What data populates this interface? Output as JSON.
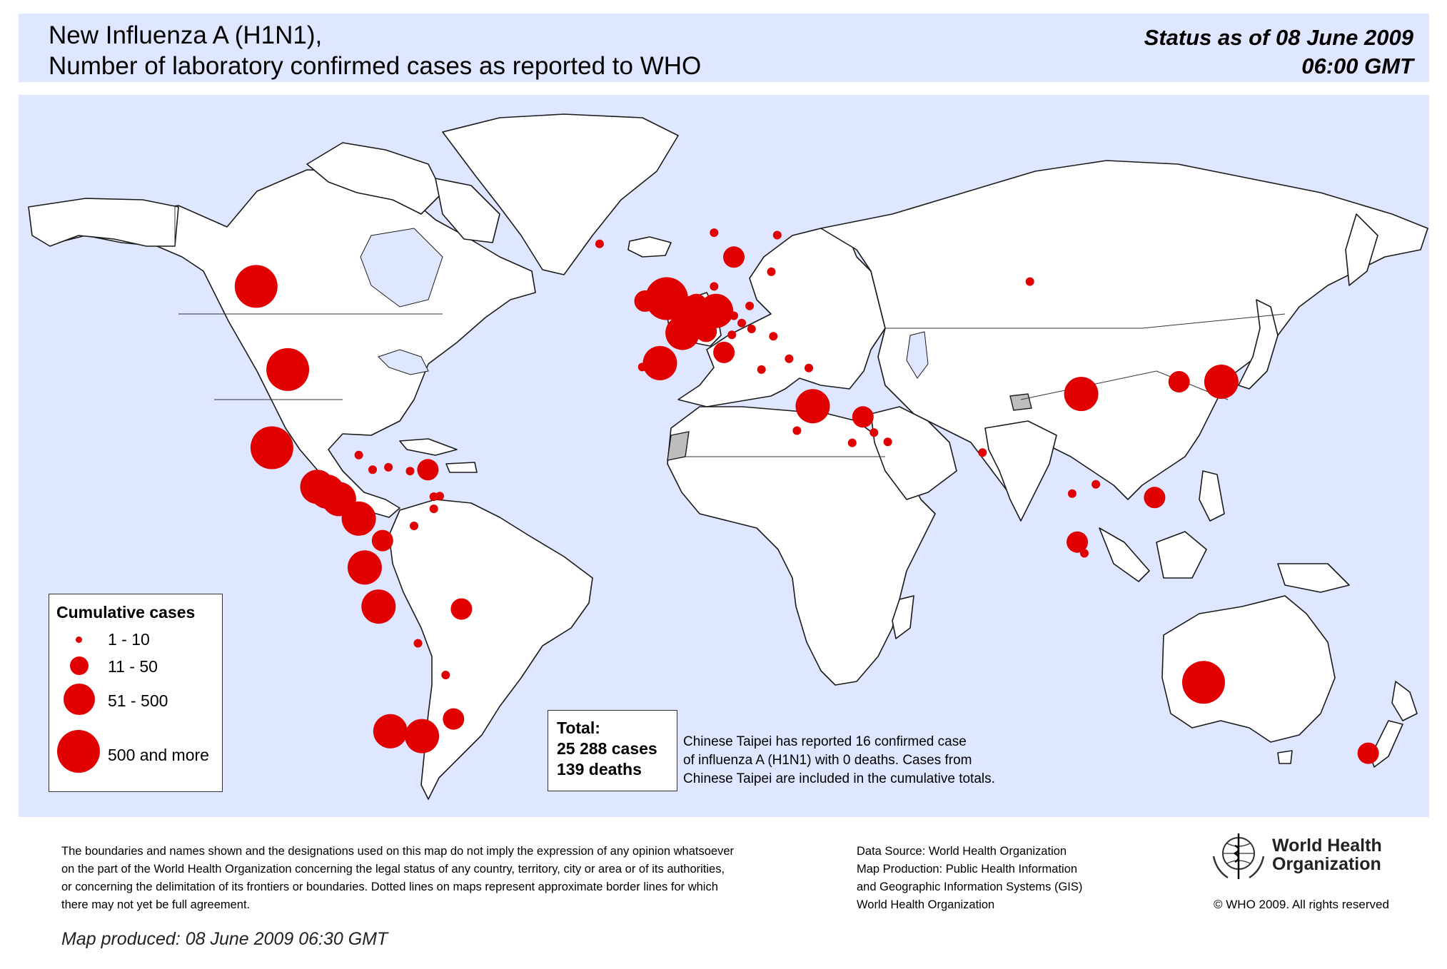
{
  "header": {
    "title_line1": "New Influenza A (H1N1),",
    "title_line2": "Number of  laboratory confirmed cases as reported to WHO",
    "status_line1": "Status as of 08 June 2009",
    "status_line2": "06:00 GMT"
  },
  "legend": {
    "title": "Cumulative cases",
    "items": [
      {
        "label": "1 - 10",
        "size_class": "small"
      },
      {
        "label": "11 - 50",
        "size_class": "medium"
      },
      {
        "label": "51 - 500",
        "size_class": "large"
      },
      {
        "label": "500 and more",
        "size_class": "xlarge"
      }
    ]
  },
  "totals": {
    "label": "Total:",
    "cases": "25 288 cases",
    "deaths": "139 deaths"
  },
  "note": {
    "line1": "Chinese Taipei has reported 16 confirmed case",
    "line2": "of influenza A (H1N1) with 0 deaths. Cases from",
    "line3": "Chinese Taipei are included in the cumulative totals."
  },
  "footer": {
    "disclaimer_line1": "The boundaries and names shown and the designations used on this map do not imply the expression of any opinion whatsoever",
    "disclaimer_line2": "on the part of the World Health Organization concerning the legal status of any country, territory, city or area or of its authorities,",
    "disclaimer_line3": "or concerning the delimitation of its frontiers or boundaries.  Dotted lines on maps represent approximate border lines for which",
    "disclaimer_line4": "there may not yet be full agreement.",
    "source_line1": "Data Source: World Health Organization",
    "source_line2": "Map Production: Public Health Information",
    "source_line3": "and Geographic Information Systems (GIS)",
    "source_line4": "World Health Organization",
    "produced": "Map produced: 08 June 2009 06:30 GMT",
    "org_line1": "World Health",
    "org_line2": "Organization",
    "copyright": "© WHO 2009. All rights reserved"
  },
  "colors": {
    "case_marker": "#e00000",
    "ocean": "#dfe6ff",
    "land": "#ffffff",
    "no_data_land": "#bdbdbd"
  },
  "map_markers": {
    "size_classes": [
      "small",
      "medium",
      "large",
      "xlarge"
    ],
    "items": [
      {
        "lon": -106,
        "lat": 56,
        "size": "xlarge"
      },
      {
        "lon": -98,
        "lat": 39,
        "size": "xlarge"
      },
      {
        "lon": -102,
        "lat": 23,
        "size": "xlarge"
      },
      {
        "lon": -90.5,
        "lat": 15,
        "size": "large"
      },
      {
        "lon": -88,
        "lat": 14,
        "size": "large"
      },
      {
        "lon": -85,
        "lat": 12.5,
        "size": "large"
      },
      {
        "lon": -80,
        "lat": 8.5,
        "size": "large"
      },
      {
        "lon": -78.5,
        "lat": -1.5,
        "size": "large"
      },
      {
        "lon": -75,
        "lat": -9.5,
        "size": "large"
      },
      {
        "lon": -72,
        "lat": -35,
        "size": "large"
      },
      {
        "lon": -64,
        "lat": -36,
        "size": "large"
      },
      {
        "lon": -74,
        "lat": 4,
        "size": "medium"
      },
      {
        "lon": -66,
        "lat": 7,
        "size": "small"
      },
      {
        "lon": -62.5,
        "lat": 18.5,
        "size": "medium"
      },
      {
        "lon": -80,
        "lat": 21.5,
        "size": "small"
      },
      {
        "lon": -76.5,
        "lat": 18.5,
        "size": "small"
      },
      {
        "lon": -72.5,
        "lat": 19,
        "size": "small"
      },
      {
        "lon": -67,
        "lat": 18.2,
        "size": "small"
      },
      {
        "lon": -61,
        "lat": 13,
        "size": "small"
      },
      {
        "lon": -59.5,
        "lat": 13.1,
        "size": "small"
      },
      {
        "lon": -61,
        "lat": 10.5,
        "size": "small"
      },
      {
        "lon": -54,
        "lat": -10,
        "size": "medium"
      },
      {
        "lon": -65,
        "lat": -17,
        "size": "small"
      },
      {
        "lon": -58,
        "lat": -23.5,
        "size": "small"
      },
      {
        "lon": -56,
        "lat": -32.5,
        "size": "medium"
      },
      {
        "lon": -19,
        "lat": 64.7,
        "size": "small"
      },
      {
        "lon": -2,
        "lat": 53.5,
        "size": "xlarge"
      },
      {
        "lon": -7.5,
        "lat": 53,
        "size": "medium"
      },
      {
        "lon": 5.5,
        "lat": 52.3,
        "size": "medium"
      },
      {
        "lon": 4.5,
        "lat": 50.6,
        "size": "large"
      },
      {
        "lon": 2,
        "lat": 46.5,
        "size": "large"
      },
      {
        "lon": 10.5,
        "lat": 51,
        "size": "large"
      },
      {
        "lon": 8,
        "lat": 46.8,
        "size": "medium"
      },
      {
        "lon": -3.7,
        "lat": 40.3,
        "size": "large"
      },
      {
        "lon": -8.2,
        "lat": 39.5,
        "size": "small"
      },
      {
        "lon": 12.5,
        "lat": 42.5,
        "size": "medium"
      },
      {
        "lon": 15,
        "lat": 62,
        "size": "medium"
      },
      {
        "lon": 10,
        "lat": 67,
        "size": "small"
      },
      {
        "lon": 26,
        "lat": 66.5,
        "size": "small"
      },
      {
        "lon": 24.5,
        "lat": 59,
        "size": "small"
      },
      {
        "lon": 10,
        "lat": 56,
        "size": "small"
      },
      {
        "lon": 19,
        "lat": 52,
        "size": "small"
      },
      {
        "lon": 15,
        "lat": 50,
        "size": "small"
      },
      {
        "lon": 17,
        "lat": 48.5,
        "size": "small"
      },
      {
        "lon": 19.5,
        "lat": 47.3,
        "size": "small"
      },
      {
        "lon": 14.5,
        "lat": 46.1,
        "size": "small"
      },
      {
        "lon": 25,
        "lat": 45.8,
        "size": "small"
      },
      {
        "lon": 22,
        "lat": 39,
        "size": "small"
      },
      {
        "lon": 34,
        "lat": 39.3,
        "size": "small"
      },
      {
        "lon": 29,
        "lat": 41.2,
        "size": "small"
      },
      {
        "lon": 35,
        "lat": 31.5,
        "size": "large"
      },
      {
        "lon": 31,
        "lat": 26.5,
        "size": "small"
      },
      {
        "lon": 47.7,
        "lat": 29.3,
        "size": "medium"
      },
      {
        "lon": 50.5,
        "lat": 26.1,
        "size": "small"
      },
      {
        "lon": 45,
        "lat": 24,
        "size": "small"
      },
      {
        "lon": 54,
        "lat": 24.2,
        "size": "small"
      },
      {
        "lon": 78,
        "lat": 22,
        "size": "small"
      },
      {
        "lon": 103,
        "lat": 34,
        "size": "large"
      },
      {
        "lon": 127.8,
        "lat": 36.5,
        "size": "medium"
      },
      {
        "lon": 138.5,
        "lat": 36.5,
        "size": "large"
      },
      {
        "lon": 121.6,
        "lat": 12.8,
        "size": "medium"
      },
      {
        "lon": 100.7,
        "lat": 13.6,
        "size": "small"
      },
      {
        "lon": 106.7,
        "lat": 15.5,
        "size": "small"
      },
      {
        "lon": 102,
        "lat": 3.7,
        "size": "medium"
      },
      {
        "lon": 103.8,
        "lat": 1.4,
        "size": "small"
      },
      {
        "lon": 134,
        "lat": -25,
        "size": "xlarge"
      },
      {
        "lon": 175.7,
        "lat": -39.5,
        "size": "medium"
      },
      {
        "lon": 90,
        "lat": 57,
        "size": "small"
      }
    ]
  }
}
